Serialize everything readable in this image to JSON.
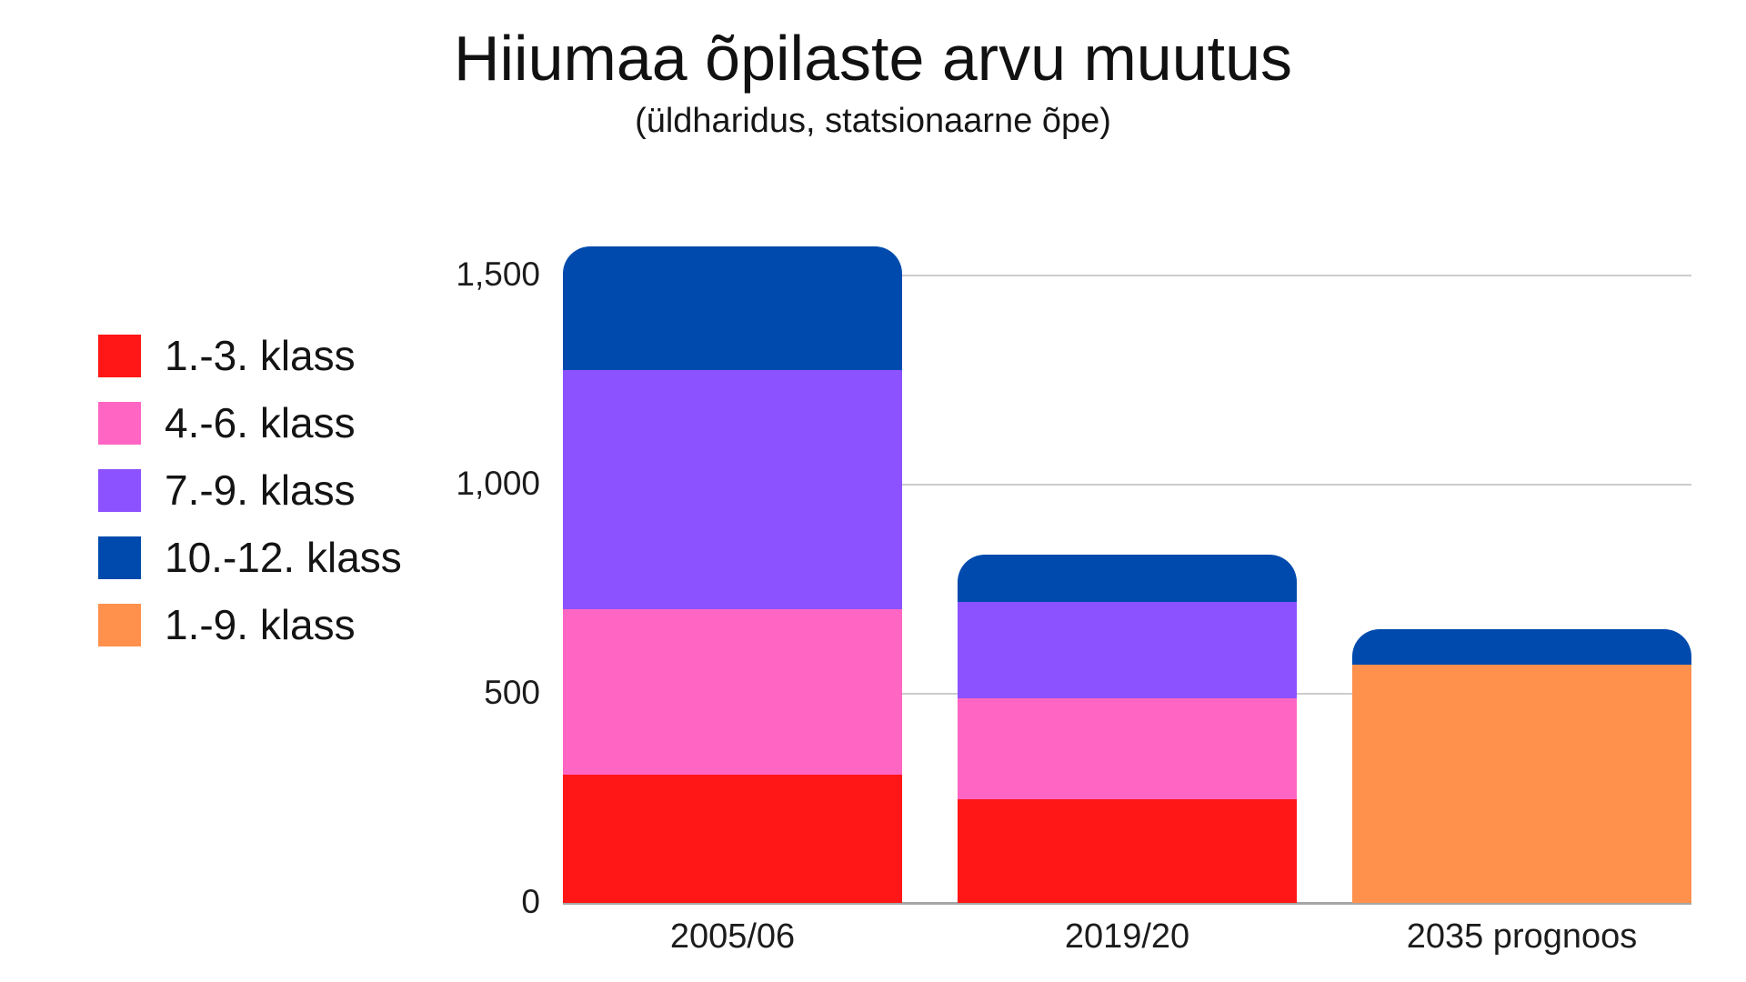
{
  "page": {
    "background": "#ffffff"
  },
  "legend": {
    "items": [
      {
        "label": "1.-3. klass",
        "color": "#FF1616"
      },
      {
        "label": "4.-6. klass",
        "color": "#FF66C4"
      },
      {
        "label": "7.-9. klass",
        "color": "#8C52FF"
      },
      {
        "label": "10.-12. klass",
        "color": "#004AAD"
      },
      {
        "label": "1.-9. klass",
        "color": "#FF914D"
      }
    ]
  },
  "chart_data": {
    "type": "bar",
    "stacked": true,
    "title": "Hiiumaa õpilaste arvu muutus",
    "subtitle": "(üldharidus, statsionaarne õpe)",
    "categories": [
      "2005/06",
      "2019/20",
      "2035 prognoos"
    ],
    "series": [
      {
        "name": "1.-3. klass",
        "color": "#FF1616",
        "values": [
          306,
          248,
          0
        ]
      },
      {
        "name": "4.-6. klass",
        "color": "#FF66C4",
        "values": [
          396,
          241,
          0
        ]
      },
      {
        "name": "7.-9. klass",
        "color": "#8C52FF",
        "values": [
          572,
          230,
          0
        ]
      },
      {
        "name": "1.-9. klass",
        "color": "#FF914D",
        "values": [
          0,
          0,
          570
        ]
      },
      {
        "name": "10.-12. klass",
        "color": "#004AAD",
        "values": [
          296,
          113,
          85
        ]
      }
    ],
    "y_ticks": [
      {
        "value": 0,
        "label": "0"
      },
      {
        "value": 500,
        "label": "500"
      },
      {
        "value": 1000,
        "label": "1,000"
      },
      {
        "value": 1500,
        "label": "1,500"
      }
    ],
    "ylim": [
      0,
      1570
    ],
    "grid": true,
    "legend_position": "left",
    "colors": {
      "gridline": "#cccccc",
      "baseline": "#a6a6a6",
      "text": "#1c1c1c"
    }
  }
}
